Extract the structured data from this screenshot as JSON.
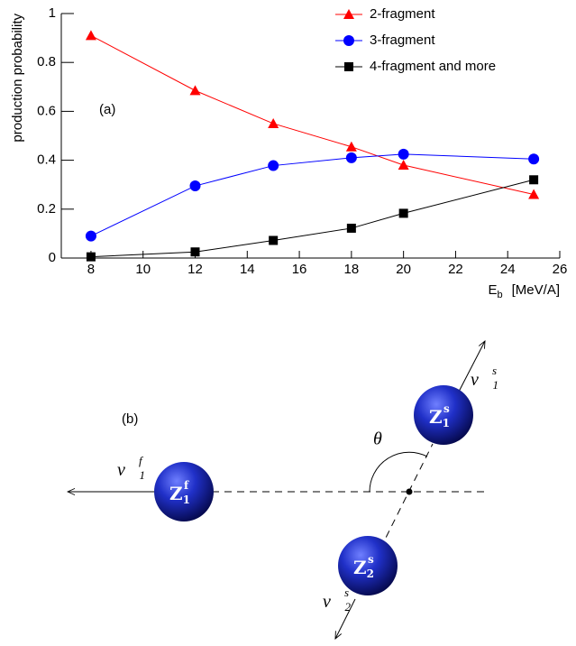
{
  "chart_data": {
    "type": "line",
    "x_label": {
      "main": "E",
      "sub": "b",
      "unit": "[MeV/A]"
    },
    "y_label": "production probability",
    "annotation": "(a)",
    "x": [
      8,
      12,
      15,
      18,
      20,
      25
    ],
    "series": [
      {
        "name": "2-fragment",
        "color": "#ff0000",
        "marker": "triangle",
        "values": [
          0.91,
          0.685,
          0.55,
          0.455,
          0.38,
          0.26
        ]
      },
      {
        "name": "3-fragment",
        "color": "#0000ff",
        "marker": "circle",
        "values": [
          0.09,
          0.295,
          0.378,
          0.41,
          0.425,
          0.405
        ]
      },
      {
        "name": "4-fragment and more",
        "color": "#000000",
        "marker": "square",
        "values": [
          0.005,
          0.025,
          0.072,
          0.122,
          0.183,
          0.32
        ]
      }
    ],
    "xlim": [
      6.86,
      26
    ],
    "xticks": [
      8,
      10,
      12,
      14,
      16,
      18,
      20,
      22,
      24,
      26
    ],
    "ylim": [
      0,
      1
    ],
    "yticks": [
      0,
      0.2,
      0.4,
      0.6,
      0.8,
      1
    ]
  },
  "diagram": {
    "label": "(b)",
    "angle": "θ",
    "vectors": [
      {
        "symbol": "v⃗",
        "sub": "1",
        "sup": "f"
      },
      {
        "symbol": "v⃗",
        "sub": "1",
        "sup": "s"
      },
      {
        "symbol": "v⃗",
        "sub": "2",
        "sup": "s"
      }
    ],
    "fragments": [
      {
        "symbol": "Z",
        "sub": "1",
        "sup": "f"
      },
      {
        "symbol": "Z",
        "sub": "1",
        "sup": "s"
      },
      {
        "symbol": "Z",
        "sub": "2",
        "sup": "s"
      }
    ]
  }
}
